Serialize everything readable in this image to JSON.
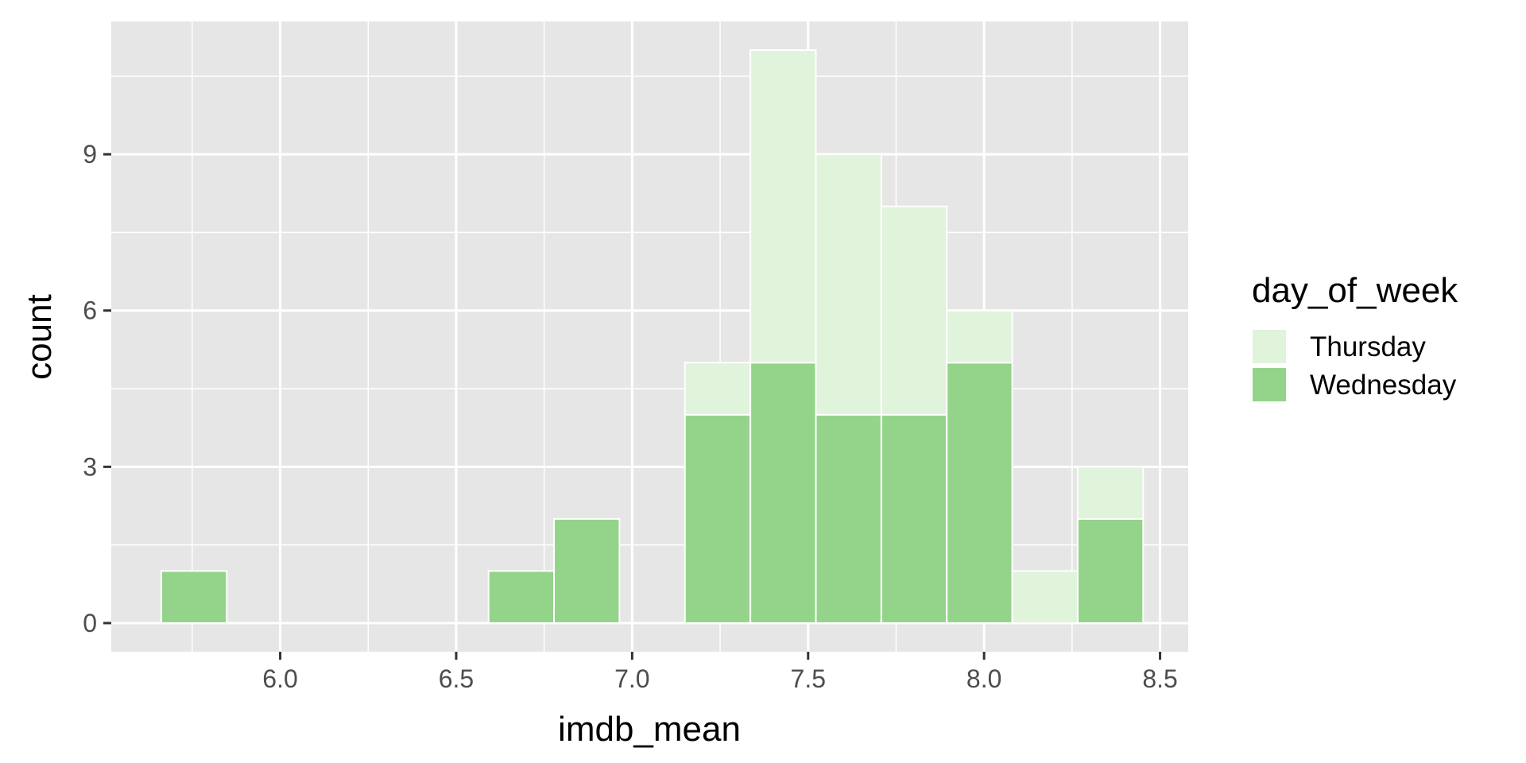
{
  "chart_data": {
    "type": "bar",
    "subtype": "stacked-histogram",
    "xlabel": "imdb_mean",
    "ylabel": "count",
    "xlim": [
      5.52,
      8.58
    ],
    "ylim": [
      -0.55,
      11.55
    ],
    "x_ticks": [
      6.0,
      6.5,
      7.0,
      7.5,
      8.0,
      8.5
    ],
    "x_tick_labels": [
      "6.0",
      "6.5",
      "7.0",
      "7.5",
      "8.0",
      "8.5"
    ],
    "y_ticks": [
      0,
      3,
      6,
      9
    ],
    "y_tick_labels": [
      "0",
      "3",
      "6",
      "9"
    ],
    "grid": true,
    "legend": {
      "title": "day_of_week",
      "placement": "right"
    },
    "bins": [
      [
        5.662,
        5.848
      ],
      [
        5.848,
        6.034
      ],
      [
        6.034,
        6.22
      ],
      [
        6.22,
        6.406
      ],
      [
        6.406,
        6.592
      ],
      [
        6.592,
        6.778
      ],
      [
        6.778,
        6.964
      ],
      [
        6.964,
        7.15
      ],
      [
        7.15,
        7.336
      ],
      [
        7.336,
        7.522
      ],
      [
        7.522,
        7.708
      ],
      [
        7.708,
        7.894
      ],
      [
        7.894,
        8.08
      ],
      [
        8.08,
        8.266
      ],
      [
        8.266,
        8.452
      ]
    ],
    "series": [
      {
        "name": "Wednesday",
        "color": "#94d48a",
        "values": [
          1,
          0,
          0,
          0,
          0,
          1,
          2,
          0,
          4,
          5,
          4,
          4,
          5,
          0,
          2
        ]
      },
      {
        "name": "Thursday",
        "color": "#e0f3db",
        "values": [
          0,
          0,
          0,
          0,
          0,
          0,
          0,
          0,
          1,
          6,
          5,
          4,
          1,
          1,
          1
        ]
      }
    ],
    "legend_order": [
      "Thursday",
      "Wednesday"
    ],
    "colors": {
      "panel": "#e6e6e6",
      "grid": "#ffffff",
      "axis_text": "#4d4d4d",
      "tick": "#333333"
    }
  }
}
